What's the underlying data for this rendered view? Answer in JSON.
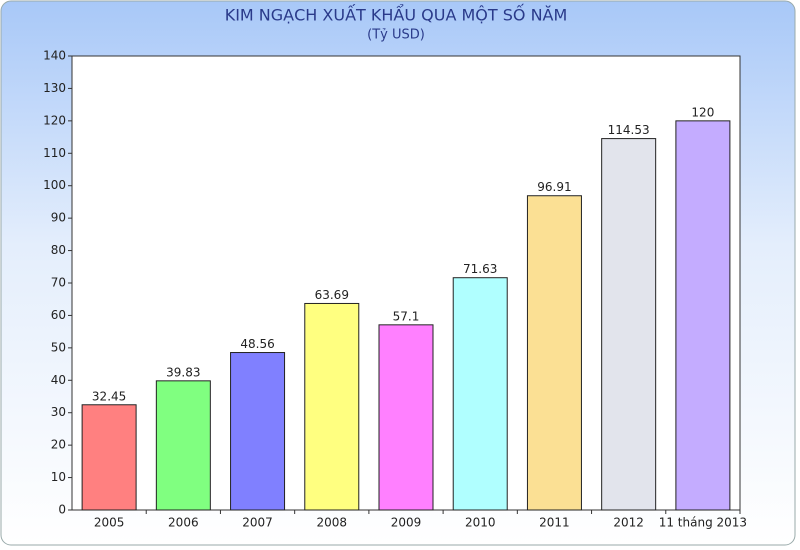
{
  "chart_data": {
    "type": "bar",
    "title": "KIM NGẠCH XUẤT KHẨU QUA MỘT SỐ NĂM",
    "subtitle": "(Tỷ USD)",
    "categories": [
      "2005",
      "2006",
      "2007",
      "2008",
      "2009",
      "2010",
      "2011",
      "2012",
      "11 tháng 2013"
    ],
    "values": [
      32.45,
      39.83,
      48.56,
      63.69,
      57.1,
      71.63,
      96.91,
      114.53,
      120
    ],
    "colors": [
      "#ff8080",
      "#80ff80",
      "#8080ff",
      "#ffff80",
      "#ff80ff",
      "#b0ffff",
      "#fbe094",
      "#e2e4ec",
      "#c4acff"
    ],
    "ylim": [
      0,
      140
    ],
    "yticks": [
      0,
      10,
      20,
      30,
      40,
      50,
      60,
      70,
      80,
      90,
      100,
      110,
      120,
      130,
      140
    ],
    "grid": false
  }
}
